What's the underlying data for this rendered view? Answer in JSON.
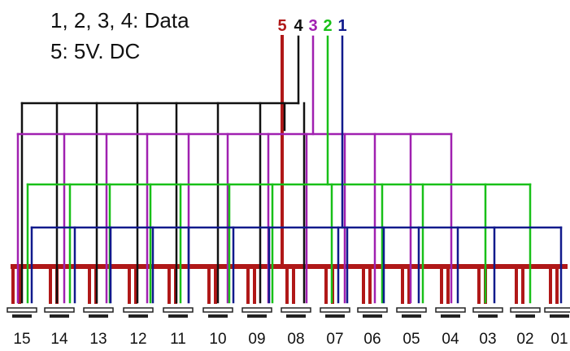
{
  "legend": {
    "line1": "1, 2, 3, 4: Data",
    "line2": "5: 5V. DC"
  },
  "lines": [
    {
      "label": "5",
      "color": "#b01818"
    },
    {
      "label": "4",
      "color": "#111111"
    },
    {
      "label": "3",
      "color": "#a020b0"
    },
    {
      "label": "2",
      "color": "#18c018"
    },
    {
      "label": "1",
      "color": "#101a8c"
    }
  ],
  "modules": [
    "15",
    "14",
    "13",
    "12",
    "11",
    "10",
    "09",
    "08",
    "07",
    "06",
    "05",
    "04",
    "03",
    "02",
    "01"
  ]
}
